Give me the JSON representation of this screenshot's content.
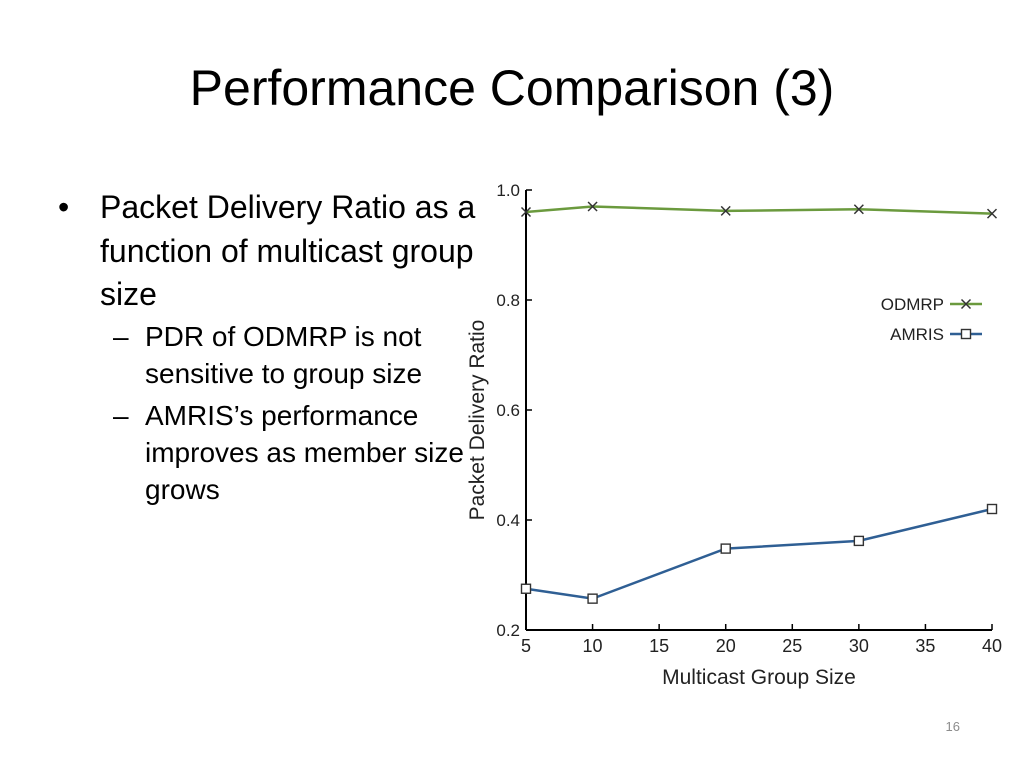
{
  "slide": {
    "title": "Performance Comparison (3)",
    "page_number": "16"
  },
  "bullets": [
    {
      "marker": "•",
      "text": "Packet Delivery Ratio as a function of multicast group size",
      "sub": [
        {
          "marker": "–",
          "text": "PDR of ODMRP is not sensitive to group size"
        },
        {
          "marker": "–",
          "text": "AMRIS’s performance improves as member size grows"
        }
      ]
    }
  ],
  "chart_data": {
    "type": "line",
    "title": "",
    "xlabel": "Multicast Group Size",
    "ylabel": "Packet Delivery Ratio",
    "xlim": [
      5,
      40
    ],
    "ylim": [
      0.2,
      1.0
    ],
    "x_ticks": [
      5,
      10,
      15,
      20,
      25,
      30,
      35,
      40
    ],
    "x_tick_labels": [
      "5",
      "10",
      "15",
      "20",
      "25",
      "30",
      "35",
      "40"
    ],
    "y_ticks": [
      0.2,
      0.4,
      0.6,
      0.8,
      1.0
    ],
    "y_tick_labels": [
      "0.2",
      "0.4",
      "0.6",
      "0.8",
      "1.0"
    ],
    "grid": false,
    "legend_position": "top-right",
    "series": [
      {
        "name": "ODMRP",
        "marker": "x",
        "color": "#6b9a3e",
        "x": [
          5,
          10,
          20,
          30,
          40
        ],
        "values": [
          0.96,
          0.97,
          0.962,
          0.965,
          0.957
        ]
      },
      {
        "name": "AMRIS",
        "marker": "square",
        "color": "#2f5f94",
        "x": [
          5,
          10,
          20,
          30,
          40
        ],
        "values": [
          0.275,
          0.257,
          0.348,
          0.362,
          0.42
        ]
      }
    ]
  }
}
